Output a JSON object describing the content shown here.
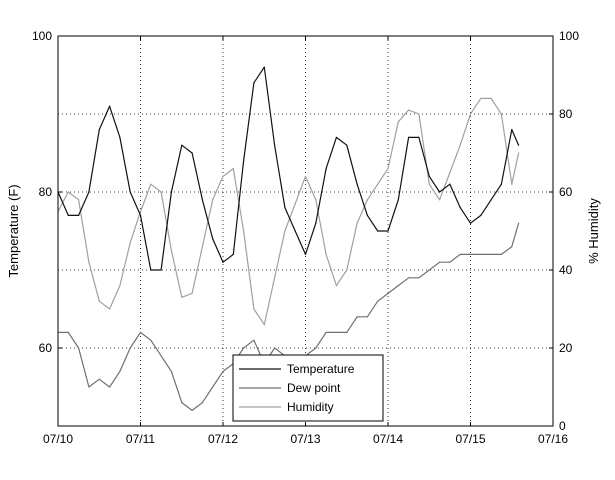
{
  "chart_data": {
    "type": "line",
    "title": "",
    "xlabel": "",
    "ylabel": "Temperature (F)",
    "y2label": "% Humidity",
    "x_tick_labels": [
      "07/10",
      "07/11",
      "07/12",
      "07/13",
      "07/14",
      "07/15",
      "07/16"
    ],
    "xlim": [
      "07/10",
      "07/16"
    ],
    "ylim": [
      50,
      100
    ],
    "y_ticks": [
      60,
      80,
      100
    ],
    "y2lim": [
      0,
      100
    ],
    "y2_ticks": [
      0,
      20,
      40,
      60,
      80,
      100
    ],
    "grid": true,
    "grid_style": "dotted",
    "legend_position": "bottom-center",
    "series": [
      {
        "name": "Temperature",
        "axis": "left",
        "color": "#111111",
        "x": [
          "07/10 00:00",
          "07/10 03:00",
          "07/10 06:00",
          "07/10 09:00",
          "07/10 12:00",
          "07/10 15:00",
          "07/10 18:00",
          "07/10 21:00",
          "07/11 00:00",
          "07/11 03:00",
          "07/11 06:00",
          "07/11 09:00",
          "07/11 12:00",
          "07/11 15:00",
          "07/11 18:00",
          "07/11 21:00",
          "07/12 00:00",
          "07/12 03:00",
          "07/12 06:00",
          "07/12 09:00",
          "07/12 12:00",
          "07/12 15:00",
          "07/12 18:00",
          "07/12 21:00",
          "07/13 00:00",
          "07/13 03:00",
          "07/13 06:00",
          "07/13 09:00",
          "07/13 12:00",
          "07/13 15:00",
          "07/13 18:00",
          "07/13 21:00",
          "07/14 00:00",
          "07/14 03:00",
          "07/14 06:00",
          "07/14 09:00",
          "07/14 12:00",
          "07/14 15:00",
          "07/14 18:00",
          "07/14 21:00",
          "07/15 00:00",
          "07/15 03:00",
          "07/15 06:00",
          "07/15 09:00",
          "07/15 12:00",
          "07/15 14:00"
        ],
        "values": [
          80,
          77,
          77,
          80,
          88,
          91,
          87,
          80,
          77,
          70,
          70,
          80,
          86,
          85,
          79,
          74,
          71,
          72,
          84,
          94,
          96,
          86,
          78,
          75,
          72,
          76,
          83,
          87,
          86,
          81,
          77,
          75,
          75,
          79,
          87,
          87,
          82,
          80,
          81,
          78,
          76,
          77,
          79,
          81,
          88,
          86
        ]
      },
      {
        "name": "Dew point",
        "axis": "left",
        "color": "#707070",
        "x": [
          "07/10 00:00",
          "07/10 03:00",
          "07/10 06:00",
          "07/10 09:00",
          "07/10 12:00",
          "07/10 15:00",
          "07/10 18:00",
          "07/10 21:00",
          "07/11 00:00",
          "07/11 03:00",
          "07/11 06:00",
          "07/11 09:00",
          "07/11 12:00",
          "07/11 15:00",
          "07/11 18:00",
          "07/11 21:00",
          "07/12 00:00",
          "07/12 03:00",
          "07/12 06:00",
          "07/12 09:00",
          "07/12 12:00",
          "07/12 15:00",
          "07/12 18:00",
          "07/12 21:00",
          "07/13 00:00",
          "07/13 03:00",
          "07/13 06:00",
          "07/13 09:00",
          "07/13 12:00",
          "07/13 15:00",
          "07/13 18:00",
          "07/13 21:00",
          "07/14 00:00",
          "07/14 03:00",
          "07/14 06:00",
          "07/14 09:00",
          "07/14 12:00",
          "07/14 15:00",
          "07/14 18:00",
          "07/14 21:00",
          "07/15 00:00",
          "07/15 03:00",
          "07/15 06:00",
          "07/15 09:00",
          "07/15 12:00",
          "07/15 14:00"
        ],
        "values": [
          62,
          62,
          60,
          55,
          56,
          55,
          57,
          60,
          62,
          61,
          59,
          57,
          53,
          52,
          53,
          55,
          57,
          58,
          60,
          61,
          58,
          60,
          59,
          58,
          59,
          60,
          62,
          62,
          62,
          64,
          64,
          66,
          67,
          68,
          69,
          69,
          70,
          71,
          71,
          72,
          72,
          72,
          72,
          72,
          73,
          76
        ]
      },
      {
        "name": "Humidity",
        "axis": "right",
        "color": "#a0a0a0",
        "x": [
          "07/10 00:00",
          "07/10 03:00",
          "07/10 06:00",
          "07/10 09:00",
          "07/10 12:00",
          "07/10 15:00",
          "07/10 18:00",
          "07/10 21:00",
          "07/11 00:00",
          "07/11 03:00",
          "07/11 06:00",
          "07/11 09:00",
          "07/11 12:00",
          "07/11 15:00",
          "07/11 18:00",
          "07/11 21:00",
          "07/12 00:00",
          "07/12 03:00",
          "07/12 06:00",
          "07/12 09:00",
          "07/12 12:00",
          "07/12 15:00",
          "07/12 18:00",
          "07/12 21:00",
          "07/13 00:00",
          "07/13 03:00",
          "07/13 06:00",
          "07/13 09:00",
          "07/13 12:00",
          "07/13 15:00",
          "07/13 18:00",
          "07/13 21:00",
          "07/14 00:00",
          "07/14 03:00",
          "07/14 06:00",
          "07/14 09:00",
          "07/14 12:00",
          "07/14 15:00",
          "07/14 18:00",
          "07/14 21:00",
          "07/15 00:00",
          "07/15 03:00",
          "07/15 06:00",
          "07/15 09:00",
          "07/15 12:00",
          "07/15 14:00"
        ],
        "values": [
          55,
          60,
          58,
          42,
          32,
          30,
          36,
          47,
          55,
          62,
          60,
          45,
          33,
          34,
          46,
          58,
          64,
          66,
          50,
          30,
          26,
          38,
          50,
          57,
          64,
          58,
          44,
          36,
          40,
          52,
          58,
          62,
          66,
          78,
          81,
          80,
          62,
          58,
          65,
          72,
          80,
          84,
          84,
          80,
          62,
          70
        ]
      }
    ]
  }
}
